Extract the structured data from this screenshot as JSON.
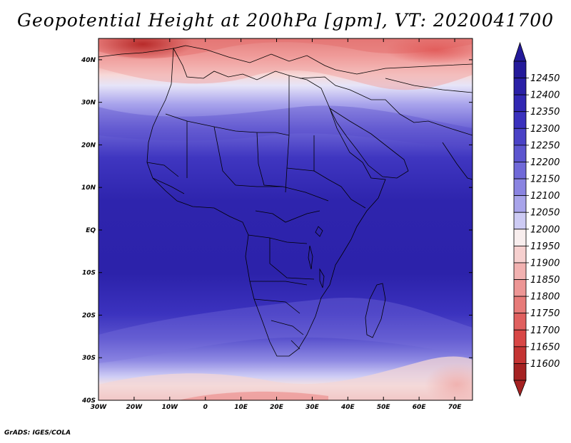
{
  "title": "Geopotential Height at 200hPa [gpm], VT: 2020041700",
  "credit": "GrADS: IGES/COLA",
  "map": {
    "lat_ticks": [
      "40N",
      "30N",
      "20N",
      "10N",
      "EQ",
      "10S",
      "20S",
      "30S",
      "40S"
    ],
    "lon_ticks": [
      "30W",
      "20W",
      "10W",
      "0",
      "10E",
      "20E",
      "30E",
      "40E",
      "50E",
      "60E",
      "70E"
    ],
    "lon_range": [
      -30,
      75
    ],
    "lat_range": [
      -40,
      45
    ]
  },
  "colorbar": {
    "levels": [
      "12450",
      "12400",
      "12350",
      "12300",
      "12250",
      "12200",
      "12150",
      "12100",
      "12050",
      "12000",
      "11950",
      "11900",
      "11850",
      "11800",
      "11750",
      "11700",
      "11650",
      "11600"
    ],
    "colors": [
      "#241a9a",
      "#2a20a6",
      "#3127b2",
      "#3a31bd",
      "#4a42c6",
      "#5c55cf",
      "#7069d8",
      "#8a84e1",
      "#a8a4ea",
      "#cdcbf4",
      "#f8eeee",
      "#f6d0cf",
      "#f2b2b1",
      "#ed9695",
      "#e77b79",
      "#e0605f",
      "#d84746",
      "#c43433",
      "#a52222"
    ]
  }
}
